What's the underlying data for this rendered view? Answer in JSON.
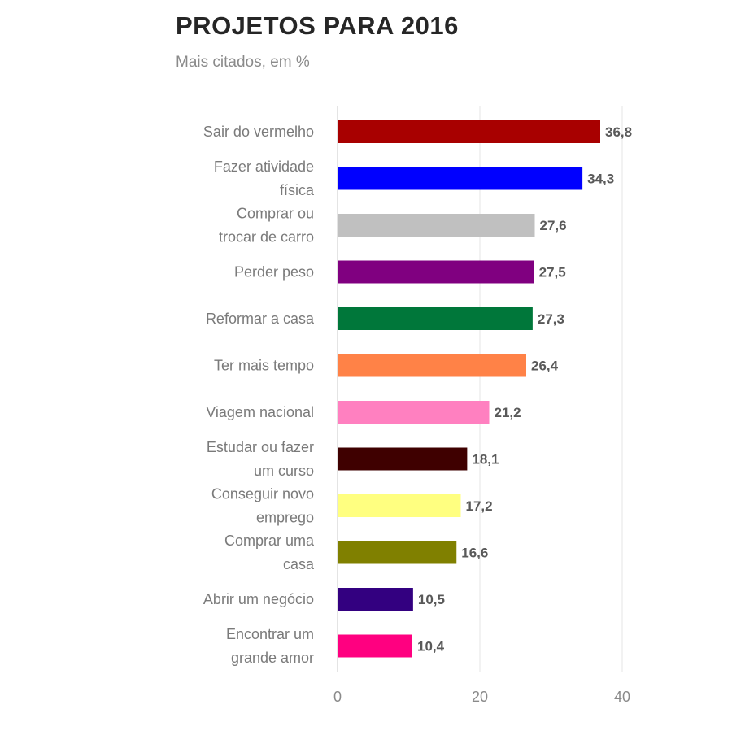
{
  "chart_data": {
    "type": "bar",
    "orientation": "horizontal",
    "title": "PROJETOS PARA 2016",
    "subtitle": "Mais citados, em %",
    "categories": [
      [
        "Sair do vermelho"
      ],
      [
        "Fazer atividade",
        "física"
      ],
      [
        "Comprar ou",
        "trocar de carro"
      ],
      [
        "Perder peso"
      ],
      [
        "Reformar a casa"
      ],
      [
        "Ter mais tempo"
      ],
      [
        "Viagem nacional"
      ],
      [
        "Estudar ou fazer",
        "um curso"
      ],
      [
        "Conseguir novo",
        "emprego"
      ],
      [
        "Comprar uma",
        "casa"
      ],
      [
        "Abrir um negócio"
      ],
      [
        "Encontrar um",
        "grande amor"
      ]
    ],
    "values": [
      36.8,
      34.3,
      27.6,
      27.5,
      27.3,
      26.4,
      21.2,
      18.1,
      17.2,
      16.6,
      10.5,
      10.4
    ],
    "value_labels": [
      "36,8",
      "34,3",
      "27,6",
      "27,5",
      "27,3",
      "26,4",
      "21,2",
      "18,1",
      "17,2",
      "16,6",
      "10,5",
      "10,4"
    ],
    "colors": [
      "#a80000",
      "#0000ff",
      "#c0c0c0",
      "#800080",
      "#00773a",
      "#ff8247",
      "#ff80c0",
      "#3f0000",
      "#ffff80",
      "#808000",
      "#330080",
      "#ff0080"
    ],
    "xlim": [
      0,
      40
    ],
    "xticks": [
      0,
      20,
      40
    ],
    "grid": true,
    "legend": "none",
    "xlabel": "",
    "ylabel": ""
  }
}
